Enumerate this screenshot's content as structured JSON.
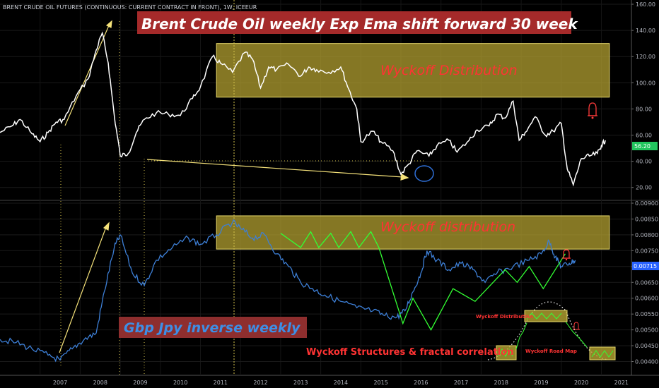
{
  "chart_data": [
    {
      "type": "line",
      "header": "BRENT CRUDE OIL FUTURES (CONTINUOUS: CURRENT CONTRACT IN FRONT), 1W, ICEEUR",
      "title": "Brent Crude Oil weekly  Exp Ema  shift forward 30 week",
      "y_ticks": [
        "160.00",
        "140.00",
        "120.00",
        "100.00",
        "80.00",
        "60.00",
        "40.00",
        "20.00"
      ],
      "ylim": [
        15,
        160
      ],
      "last_price": "56.20",
      "series": [
        {
          "values": [
            [
              2006.0,
              62
            ],
            [
              2006.3,
              67
            ],
            [
              2006.5,
              72
            ],
            [
              2006.8,
              61
            ],
            [
              2007.0,
              55
            ],
            [
              2007.2,
              62
            ],
            [
              2007.4,
              70
            ],
            [
              2007.6,
              72
            ],
            [
              2007.9,
              90
            ],
            [
              2008.2,
              103
            ],
            [
              2008.4,
              125
            ],
            [
              2008.55,
              138
            ],
            [
              2008.7,
              115
            ],
            [
              2008.85,
              75
            ],
            [
              2009.0,
              44
            ],
            [
              2009.2,
              46
            ],
            [
              2009.4,
              62
            ],
            [
              2009.6,
              72
            ],
            [
              2009.9,
              77
            ],
            [
              2010.2,
              76
            ],
            [
              2010.5,
              75
            ],
            [
              2010.8,
              88
            ],
            [
              2011.0,
              97
            ],
            [
              2011.3,
              120
            ],
            [
              2011.5,
              115
            ],
            [
              2011.8,
              108
            ],
            [
              2012.1,
              123
            ],
            [
              2012.3,
              118
            ],
            [
              2012.5,
              96
            ],
            [
              2012.7,
              112
            ],
            [
              2012.9,
              110
            ],
            [
              2013.2,
              114
            ],
            [
              2013.5,
              105
            ],
            [
              2013.7,
              112
            ],
            [
              2013.9,
              110
            ],
            [
              2014.2,
              108
            ],
            [
              2014.5,
              112
            ],
            [
              2014.7,
              95
            ],
            [
              2014.9,
              80
            ],
            [
              2015.0,
              55
            ],
            [
              2015.3,
              63
            ],
            [
              2015.5,
              55
            ],
            [
              2015.8,
              48
            ],
            [
              2016.0,
              30
            ],
            [
              2016.2,
              38
            ],
            [
              2016.4,
              48
            ],
            [
              2016.7,
              44
            ],
            [
              2016.9,
              52
            ],
            [
              2017.2,
              56
            ],
            [
              2017.4,
              47
            ],
            [
              2017.7,
              56
            ],
            [
              2017.9,
              64
            ],
            [
              2018.2,
              67
            ],
            [
              2018.4,
              76
            ],
            [
              2018.6,
              73
            ],
            [
              2018.8,
              86
            ],
            [
              2018.95,
              56
            ],
            [
              2019.1,
              62
            ],
            [
              2019.35,
              74
            ],
            [
              2019.6,
              60
            ],
            [
              2019.8,
              63
            ],
            [
              2020.0,
              69
            ],
            [
              2020.15,
              34
            ],
            [
              2020.3,
              22
            ],
            [
              2020.5,
              42
            ],
            [
              2020.7,
              44
            ],
            [
              2020.9,
              46
            ],
            [
              2021.0,
              52
            ],
            [
              2021.1,
              56
            ]
          ],
          "color": "#ffffff"
        }
      ],
      "annotations": [
        {
          "text": "Wyckoff Distribution",
          "type": "zone",
          "x_range": [
            2011.4,
            2021.2
          ],
          "y_range": [
            89,
            130
          ],
          "color": "#d4c24d"
        }
      ]
    },
    {
      "type": "line",
      "title": "Gbp Jpy inverse weekly",
      "y_ticks": [
        "0.00900",
        "0.00850",
        "0.00800",
        "0.00750",
        "0.00700",
        "0.00650",
        "0.00600",
        "0.00550",
        "0.00500",
        "0.00450",
        "0.00400"
      ],
      "ylim": [
        0.0037,
        0.009
      ],
      "last_price": "0.00715",
      "x_ticks": [
        "2007",
        "2008",
        "2009",
        "2010",
        "2011",
        "2012",
        "2013",
        "2014",
        "2015",
        "2016",
        "2017",
        "2018",
        "2019",
        "2020",
        "2021"
      ],
      "x_tick_values": [
        2007,
        2008,
        2009,
        2010,
        2011,
        2012,
        2013,
        2014,
        2015,
        2016,
        2017,
        2018,
        2019,
        2020,
        2021
      ],
      "series": [
        {
          "values": [
            [
              2006.0,
              0.0047
            ],
            [
              2006.4,
              0.0046
            ],
            [
              2006.8,
              0.0044
            ],
            [
              2007.2,
              0.0042
            ],
            [
              2007.5,
              0.00405
            ],
            [
              2007.8,
              0.0044
            ],
            [
              2008.1,
              0.0047
            ],
            [
              2008.4,
              0.0049
            ],
            [
              2008.6,
              0.0062
            ],
            [
              2008.85,
              0.0076
            ],
            [
              2009.0,
              0.008
            ],
            [
              2009.3,
              0.0068
            ],
            [
              2009.6,
              0.0064
            ],
            [
              2009.9,
              0.0072
            ],
            [
              2010.3,
              0.0076
            ],
            [
              2010.7,
              0.0079
            ],
            [
              2011.0,
              0.0077
            ],
            [
              2011.4,
              0.008
            ],
            [
              2011.8,
              0.0084
            ],
            [
              2012.0,
              0.0082
            ],
            [
              2012.3,
              0.0079
            ],
            [
              2012.6,
              0.008
            ],
            [
              2012.9,
              0.0074
            ],
            [
              2013.2,
              0.007
            ],
            [
              2013.5,
              0.0065
            ],
            [
              2013.8,
              0.0063
            ],
            [
              2014.1,
              0.0061
            ],
            [
              2014.5,
              0.0059
            ],
            [
              2014.9,
              0.0057
            ],
            [
              2015.3,
              0.0056
            ],
            [
              2015.6,
              0.00545
            ],
            [
              2015.9,
              0.0054
            ],
            [
              2016.1,
              0.0056
            ],
            [
              2016.3,
              0.0062
            ],
            [
              2016.5,
              0.0068
            ],
            [
              2016.65,
              0.0075
            ],
            [
              2016.9,
              0.0072
            ],
            [
              2017.2,
              0.0069
            ],
            [
              2017.5,
              0.0071
            ],
            [
              2017.8,
              0.0069
            ],
            [
              2018.1,
              0.0065
            ],
            [
              2018.4,
              0.0068
            ],
            [
              2018.8,
              0.007
            ],
            [
              2019.2,
              0.0072
            ],
            [
              2019.5,
              0.0074
            ],
            [
              2019.7,
              0.0078
            ],
            [
              2019.85,
              0.0073
            ],
            [
              2020.0,
              0.007
            ],
            [
              2020.2,
              0.0071
            ],
            [
              2020.35,
              0.0072
            ]
          ],
          "color": "#3d7fd6"
        },
        {
          "values": [
            [
              2013.0,
              0.00805
            ],
            [
              2013.5,
              0.0076
            ],
            [
              2013.75,
              0.0081
            ],
            [
              2013.95,
              0.0076
            ],
            [
              2014.25,
              0.00805
            ],
            [
              2014.45,
              0.0076
            ],
            [
              2014.75,
              0.0081
            ],
            [
              2014.95,
              0.0076
            ],
            [
              2015.25,
              0.0081
            ],
            [
              2015.45,
              0.0076
            ],
            [
              2016.05,
              0.0052
            ],
            [
              2016.3,
              0.006
            ],
            [
              2016.75,
              0.005
            ],
            [
              2017.3,
              0.0063
            ],
            [
              2017.85,
              0.0059
            ],
            [
              2018.6,
              0.0069
            ],
            [
              2018.9,
              0.0065
            ],
            [
              2019.2,
              0.007
            ],
            [
              2019.55,
              0.0063
            ],
            [
              2020.1,
              0.0074
            ]
          ],
          "color": "#33ff33"
        }
      ],
      "annotations": [
        {
          "text": "Wyckoff distribution",
          "type": "zone",
          "x_range": [
            2011.4,
            2021.2
          ],
          "y_range": [
            0.00755,
            0.0086
          ],
          "color": "#d4c24d"
        },
        {
          "text": "Wyckoff Structures & fractal correlation",
          "type": "label",
          "color": "#ff3333"
        },
        {
          "text": "Wyckoff Distribution",
          "type": "inset-zone",
          "color": "#d4c24d"
        },
        {
          "text": "Wyckoff Road Map",
          "type": "inset-label",
          "color": "#ff3333"
        }
      ]
    }
  ]
}
